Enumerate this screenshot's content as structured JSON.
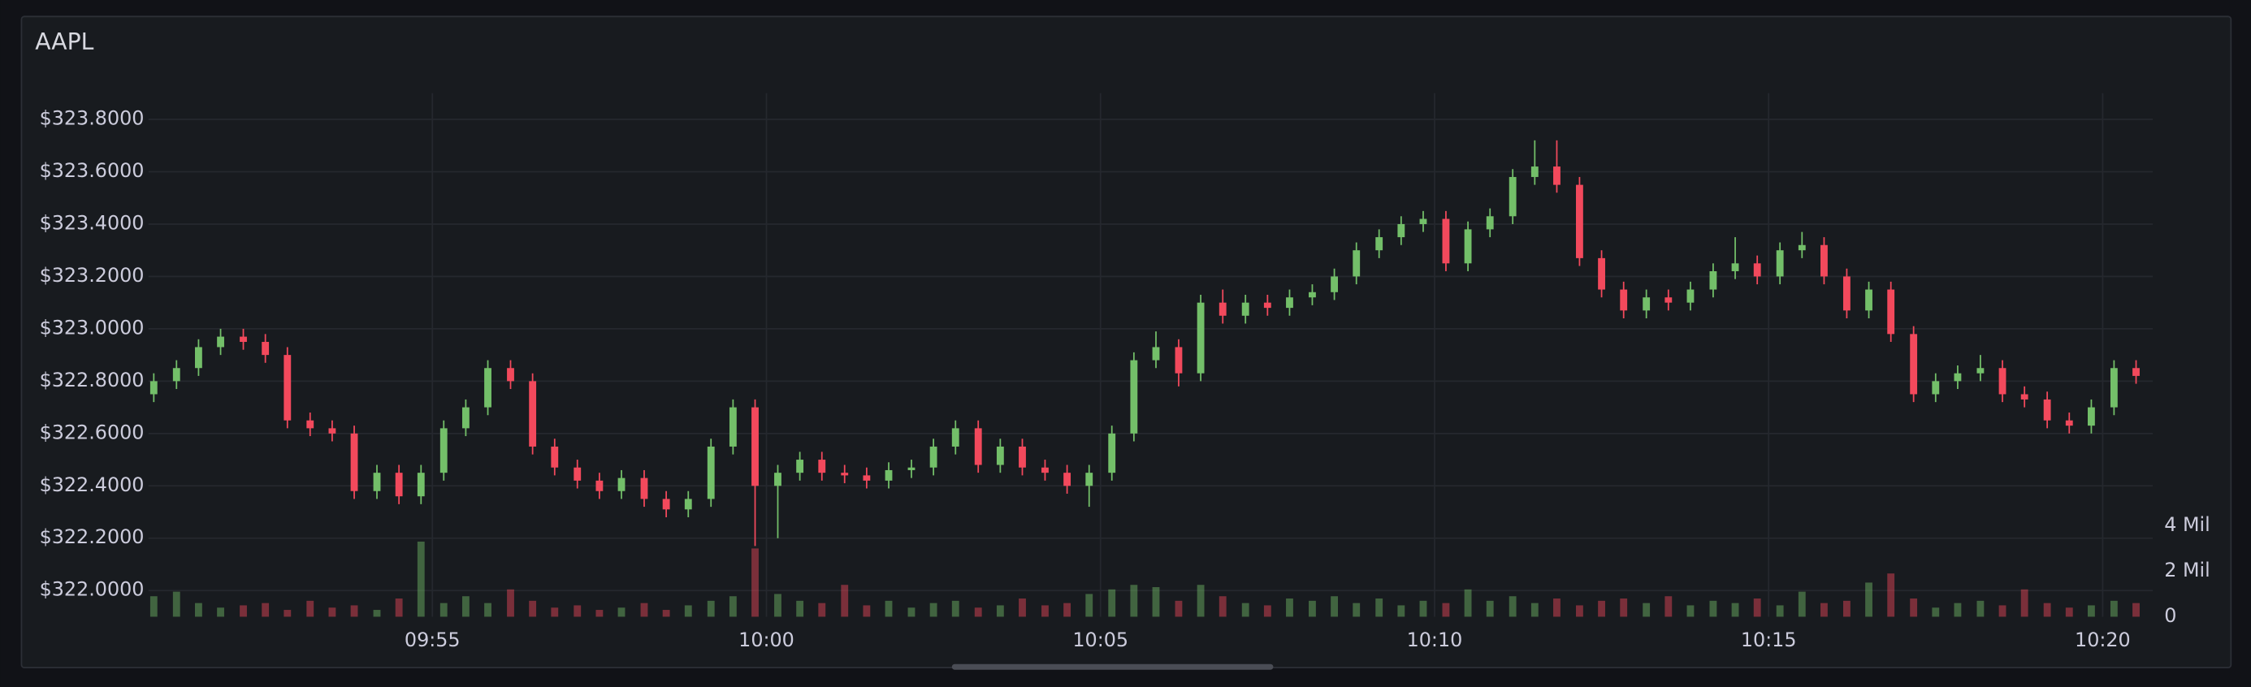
{
  "chart_data": {
    "type": "candlestick",
    "title": "AAPL",
    "x": [
      590.83,
      591.17,
      591.5,
      591.83,
      592.17,
      592.5,
      592.83,
      593.17,
      593.5,
      593.83,
      594.17,
      594.5,
      594.83,
      595.17,
      595.5,
      595.83,
      596.17,
      596.5,
      596.83,
      597.17,
      597.5,
      597.83,
      598.17,
      598.5,
      598.83,
      599.17,
      599.5,
      599.83,
      600.17,
      600.5,
      600.83,
      601.17,
      601.5,
      601.83,
      602.17,
      602.5,
      602.83,
      603.17,
      603.5,
      603.83,
      604.17,
      604.5,
      604.83,
      605.17,
      605.5,
      605.83,
      606.17,
      606.5,
      606.83,
      607.17,
      607.5,
      607.83,
      608.17,
      608.5,
      608.83,
      609.17,
      609.5,
      609.83,
      610.17,
      610.5,
      610.83,
      611.17,
      611.5,
      611.83,
      612.17,
      612.5,
      612.83,
      613.17,
      613.5,
      613.83,
      614.17,
      614.5,
      614.83,
      615.17,
      615.5,
      615.83,
      616.17,
      616.5,
      616.83,
      617.17,
      617.5,
      617.83,
      618.17,
      618.5,
      618.83,
      619.17,
      619.5,
      619.83,
      620.17,
      620.5
    ],
    "open": [
      322.75,
      322.8,
      322.85,
      322.93,
      322.97,
      322.95,
      322.9,
      322.65,
      322.62,
      322.6,
      322.38,
      322.45,
      322.36,
      322.45,
      322.62,
      322.7,
      322.85,
      322.8,
      322.55,
      322.47,
      322.42,
      322.38,
      322.43,
      322.35,
      322.31,
      322.35,
      322.55,
      322.7,
      322.4,
      322.45,
      322.5,
      322.45,
      322.44,
      322.42,
      322.46,
      322.47,
      322.55,
      322.62,
      322.48,
      322.55,
      322.47,
      322.45,
      322.4,
      322.45,
      322.6,
      322.88,
      322.93,
      322.83,
      323.1,
      323.05,
      323.1,
      323.08,
      323.12,
      323.14,
      323.2,
      323.3,
      323.35,
      323.4,
      323.42,
      323.25,
      323.38,
      323.43,
      323.58,
      323.62,
      323.55,
      323.27,
      323.15,
      323.07,
      323.12,
      323.1,
      323.15,
      323.22,
      323.25,
      323.2,
      323.3,
      323.32,
      323.2,
      323.07,
      323.15,
      322.98,
      322.75,
      322.8,
      322.83,
      322.85,
      322.75,
      322.73,
      322.65,
      322.63,
      322.7,
      322.85
    ],
    "high": [
      322.83,
      322.88,
      322.96,
      323.0,
      323.0,
      322.98,
      322.93,
      322.68,
      322.65,
      322.63,
      322.48,
      322.48,
      322.48,
      322.65,
      322.73,
      322.88,
      322.88,
      322.83,
      322.58,
      322.5,
      322.45,
      322.46,
      322.46,
      322.38,
      322.38,
      322.58,
      322.73,
      322.73,
      322.48,
      322.53,
      322.53,
      322.48,
      322.47,
      322.49,
      322.5,
      322.58,
      322.65,
      322.65,
      322.58,
      322.58,
      322.5,
      322.48,
      322.48,
      322.63,
      322.91,
      322.99,
      322.96,
      323.13,
      323.15,
      323.13,
      323.13,
      323.15,
      323.17,
      323.23,
      323.33,
      323.38,
      323.43,
      323.45,
      323.45,
      323.41,
      323.46,
      323.61,
      323.72,
      323.72,
      323.58,
      323.3,
      323.18,
      323.15,
      323.15,
      323.18,
      323.25,
      323.35,
      323.28,
      323.33,
      323.37,
      323.35,
      323.23,
      323.18,
      323.18,
      323.01,
      322.83,
      322.86,
      322.9,
      322.88,
      322.78,
      322.76,
      322.68,
      322.73,
      322.88,
      322.88
    ],
    "low": [
      322.72,
      322.77,
      322.82,
      322.9,
      322.92,
      322.87,
      322.62,
      322.59,
      322.57,
      322.35,
      322.35,
      322.33,
      322.33,
      322.42,
      322.59,
      322.67,
      322.77,
      322.52,
      322.44,
      322.39,
      322.35,
      322.35,
      322.32,
      322.28,
      322.28,
      322.32,
      322.52,
      322.17,
      322.2,
      322.42,
      322.42,
      322.41,
      322.39,
      322.39,
      322.43,
      322.44,
      322.52,
      322.45,
      322.45,
      322.44,
      322.42,
      322.37,
      322.32,
      322.42,
      322.57,
      322.85,
      322.78,
      322.8,
      323.02,
      323.02,
      323.05,
      323.05,
      323.09,
      323.11,
      323.17,
      323.27,
      323.32,
      323.37,
      323.22,
      323.22,
      323.35,
      323.4,
      323.55,
      323.52,
      323.24,
      323.12,
      323.04,
      323.04,
      323.07,
      323.07,
      323.12,
      323.19,
      323.17,
      323.17,
      323.27,
      323.17,
      323.04,
      323.04,
      322.95,
      322.72,
      322.72,
      322.77,
      322.8,
      322.72,
      322.7,
      322.62,
      322.6,
      322.6,
      322.67,
      322.79
    ],
    "close": [
      322.8,
      322.85,
      322.93,
      322.97,
      322.95,
      322.9,
      322.65,
      322.62,
      322.6,
      322.38,
      322.45,
      322.36,
      322.45,
      322.62,
      322.7,
      322.85,
      322.8,
      322.55,
      322.47,
      322.42,
      322.38,
      322.43,
      322.35,
      322.31,
      322.35,
      322.55,
      322.7,
      322.4,
      322.45,
      322.5,
      322.45,
      322.44,
      322.42,
      322.46,
      322.47,
      322.55,
      322.62,
      322.48,
      322.55,
      322.47,
      322.45,
      322.4,
      322.45,
      322.6,
      322.88,
      322.93,
      322.83,
      323.1,
      323.05,
      323.1,
      323.08,
      323.12,
      323.14,
      323.2,
      323.3,
      323.35,
      323.4,
      323.42,
      323.25,
      323.38,
      323.43,
      323.58,
      323.62,
      323.55,
      323.27,
      323.15,
      323.07,
      323.12,
      323.1,
      323.15,
      323.22,
      323.25,
      323.2,
      323.3,
      323.32,
      323.2,
      323.07,
      323.15,
      322.98,
      322.75,
      322.8,
      322.83,
      322.85,
      322.75,
      322.73,
      322.65,
      322.63,
      322.7,
      322.85,
      322.82
    ],
    "volume": [
      900000,
      1100000,
      600000,
      400000,
      500000,
      600000,
      300000,
      700000,
      400000,
      500000,
      300000,
      800000,
      3300000,
      600000,
      900000,
      600000,
      1200000,
      700000,
      400000,
      500000,
      300000,
      400000,
      600000,
      300000,
      500000,
      700000,
      900000,
      3000000,
      1000000,
      700000,
      600000,
      1400000,
      500000,
      700000,
      400000,
      600000,
      700000,
      400000,
      500000,
      800000,
      500000,
      600000,
      1000000,
      1200000,
      1400000,
      1300000,
      700000,
      1400000,
      900000,
      600000,
      500000,
      800000,
      700000,
      900000,
      600000,
      800000,
      500000,
      700000,
      600000,
      1200000,
      700000,
      900000,
      600000,
      800000,
      500000,
      700000,
      800000,
      600000,
      900000,
      500000,
      700000,
      600000,
      800000,
      500000,
      1100000,
      600000,
      700000,
      1500000,
      1900000,
      800000,
      400000,
      600000,
      700000,
      500000,
      1200000,
      600000,
      400000,
      500000,
      700000,
      600000
    ],
    "xlim": [
      590.75,
      620.75
    ],
    "xticks": [
      {
        "value": 595,
        "label": "09:55"
      },
      {
        "value": 600,
        "label": "10:00"
      },
      {
        "value": 605,
        "label": "10:05"
      },
      {
        "value": 610,
        "label": "10:10"
      },
      {
        "value": 615,
        "label": "10:15"
      },
      {
        "value": 620,
        "label": "10:20"
      }
    ],
    "ylim": [
      321.9,
      323.9
    ],
    "yticks": [
      {
        "value": 322,
        "label": "$322.0000"
      },
      {
        "value": 322.2,
        "label": "$322.2000"
      },
      {
        "value": 322.4,
        "label": "$322.4000"
      },
      {
        "value": 322.6,
        "label": "$322.6000"
      },
      {
        "value": 322.8,
        "label": "$322.8000"
      },
      {
        "value": 323,
        "label": "$323.0000"
      },
      {
        "value": 323.2,
        "label": "$323.2000"
      },
      {
        "value": 323.4,
        "label": "$323.4000"
      },
      {
        "value": 323.6,
        "label": "$323.6000"
      },
      {
        "value": 323.8,
        "label": "$323.8000"
      }
    ],
    "y2lim": [
      0,
      23000000
    ],
    "y2ticks": [
      0,
      {
        "value": 2000000,
        "label": "2 Mil"
      },
      {
        "value": 4000000,
        "label": "4 Mil"
      }
    ],
    "up_color": "#73bf69",
    "down_color": "#f2495c",
    "grid": true
  }
}
